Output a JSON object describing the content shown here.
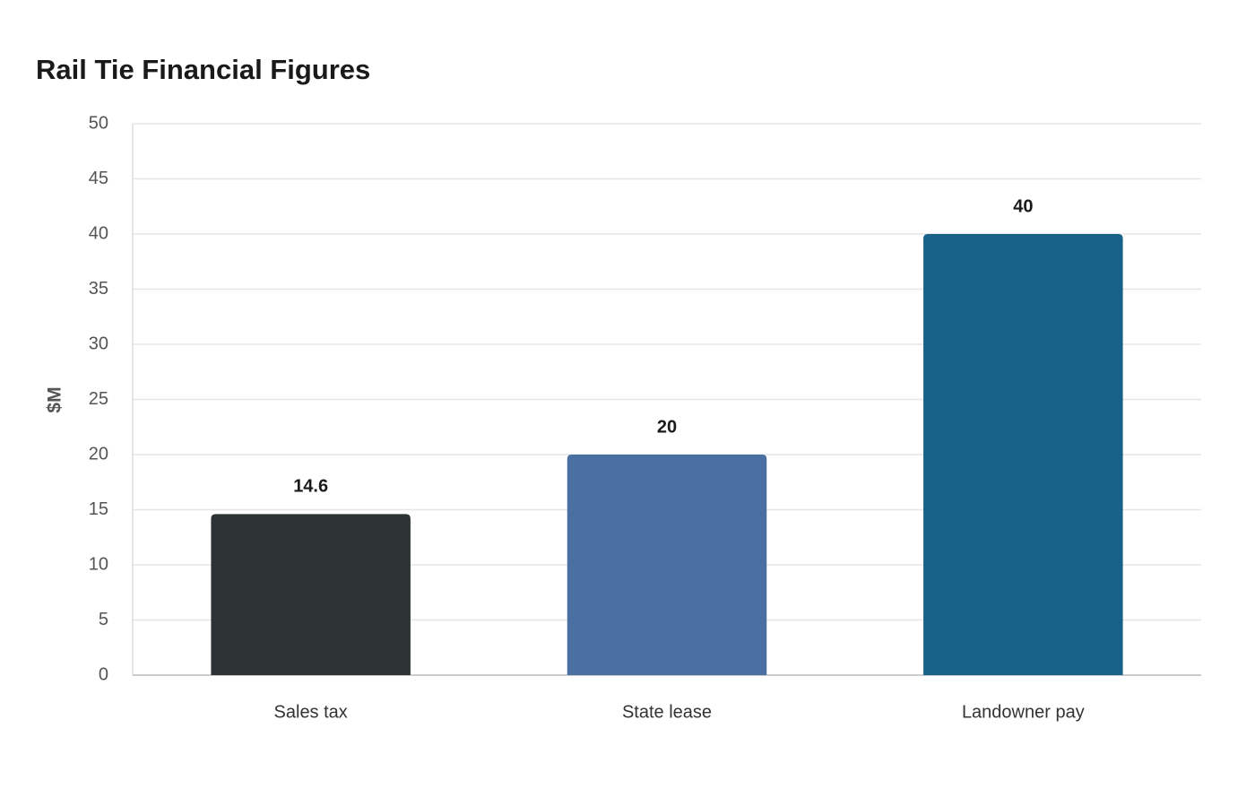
{
  "chart_data": {
    "type": "bar",
    "title": "Rail Tie Financial Figures",
    "y_label": "$M",
    "categories": [
      "Sales tax",
      "State lease",
      "Landowner pay"
    ],
    "values": [
      14.6,
      20,
      40
    ],
    "colors": [
      "#2e3436",
      "#4a6fa3",
      "#186189"
    ],
    "ylim": [
      0,
      50
    ],
    "yticks": [
      0,
      5,
      10,
      15,
      20,
      25,
      30,
      35,
      40,
      45,
      50
    ],
    "grid": true
  }
}
